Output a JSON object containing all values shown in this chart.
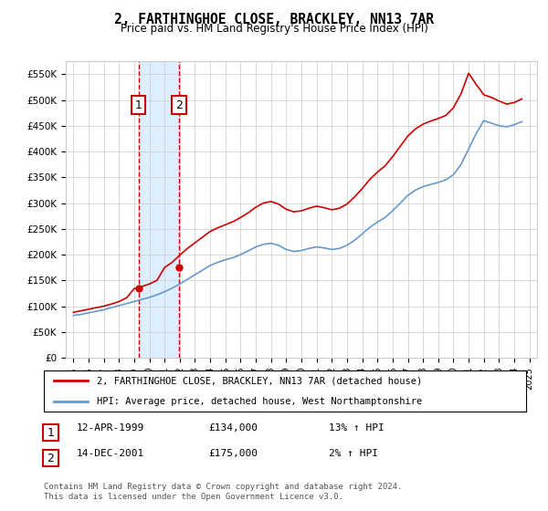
{
  "title": "2, FARTHINGHOE CLOSE, BRACKLEY, NN13 7AR",
  "subtitle": "Price paid vs. HM Land Registry's House Price Index (HPI)",
  "legend_line1": "2, FARTHINGHOE CLOSE, BRACKLEY, NN13 7AR (detached house)",
  "legend_line2": "HPI: Average price, detached house, West Northamptonshire",
  "footnote": "Contains HM Land Registry data © Crown copyright and database right 2024.\nThis data is licensed under the Open Government Licence v3.0.",
  "transaction1_label": "1",
  "transaction1_date": "12-APR-1999",
  "transaction1_price": "£134,000",
  "transaction1_hpi": "13% ↑ HPI",
  "transaction2_label": "2",
  "transaction2_date": "14-DEC-2001",
  "transaction2_price": "£175,000",
  "transaction2_hpi": "2% ↑ HPI",
  "hpi_color": "#6699cc",
  "price_color": "#cc0000",
  "background_color": "#ffffff",
  "grid_color": "#cccccc",
  "shade_color": "#ddeeff",
  "transaction1_x": 1999.28,
  "transaction2_x": 2001.95,
  "ylim_min": 0,
  "ylim_max": 575000,
  "xlim_min": 1994.5,
  "xlim_max": 2025.5,
  "hpi_years": [
    1995,
    1995.5,
    1996,
    1996.5,
    1997,
    1997.5,
    1998,
    1998.5,
    1999,
    1999.5,
    2000,
    2000.5,
    2001,
    2001.5,
    2002,
    2002.5,
    2003,
    2003.5,
    2004,
    2004.5,
    2005,
    2005.5,
    2006,
    2006.5,
    2007,
    2007.5,
    2008,
    2008.5,
    2009,
    2009.5,
    2010,
    2010.5,
    2011,
    2011.5,
    2012,
    2012.5,
    2013,
    2013.5,
    2014,
    2014.5,
    2015,
    2015.5,
    2016,
    2016.5,
    2017,
    2017.5,
    2018,
    2018.5,
    2019,
    2019.5,
    2020,
    2020.5,
    2021,
    2021.5,
    2022,
    2022.5,
    2023,
    2023.5,
    2024,
    2024.5
  ],
  "hpi_values": [
    82000,
    84000,
    87000,
    90000,
    93000,
    97000,
    101000,
    105000,
    109000,
    113000,
    117000,
    122000,
    128000,
    135000,
    143000,
    152000,
    161000,
    170000,
    179000,
    185000,
    190000,
    194000,
    200000,
    207000,
    215000,
    220000,
    222000,
    218000,
    210000,
    206000,
    208000,
    212000,
    215000,
    213000,
    210000,
    212000,
    218000,
    228000,
    240000,
    253000,
    263000,
    272000,
    285000,
    300000,
    315000,
    325000,
    332000,
    336000,
    340000,
    345000,
    355000,
    375000,
    405000,
    435000,
    460000,
    455000,
    450000,
    448000,
    452000,
    458000
  ],
  "price_years": [
    1995,
    1995.5,
    1996,
    1996.5,
    1997,
    1997.5,
    1998,
    1998.5,
    1999,
    1999.5,
    2000,
    2000.5,
    2001,
    2001.5,
    2002,
    2002.5,
    2003,
    2003.5,
    2004,
    2004.5,
    2005,
    2005.5,
    2006,
    2006.5,
    2007,
    2007.5,
    2008,
    2008.5,
    2009,
    2009.5,
    2010,
    2010.5,
    2011,
    2011.5,
    2012,
    2012.5,
    2013,
    2013.5,
    2014,
    2014.5,
    2015,
    2015.5,
    2016,
    2016.5,
    2017,
    2017.5,
    2018,
    2018.5,
    2019,
    2019.5,
    2020,
    2020.5,
    2021,
    2021.5,
    2022,
    2022.5,
    2023,
    2023.5,
    2024,
    2024.5
  ],
  "price_values": [
    88000,
    91000,
    94000,
    97000,
    100000,
    104000,
    109000,
    116000,
    134000,
    138000,
    143000,
    150000,
    175000,
    185000,
    199000,
    212000,
    223000,
    234000,
    245000,
    252000,
    258000,
    264000,
    272000,
    281000,
    292000,
    300000,
    303000,
    298000,
    288000,
    283000,
    285000,
    290000,
    294000,
    291000,
    287000,
    290000,
    298000,
    312000,
    328000,
    346000,
    360000,
    372000,
    390000,
    410000,
    430000,
    444000,
    453000,
    459000,
    464000,
    470000,
    485000,
    512000,
    552000,
    530000,
    510000,
    505000,
    498000,
    492000,
    495000,
    502000
  ]
}
